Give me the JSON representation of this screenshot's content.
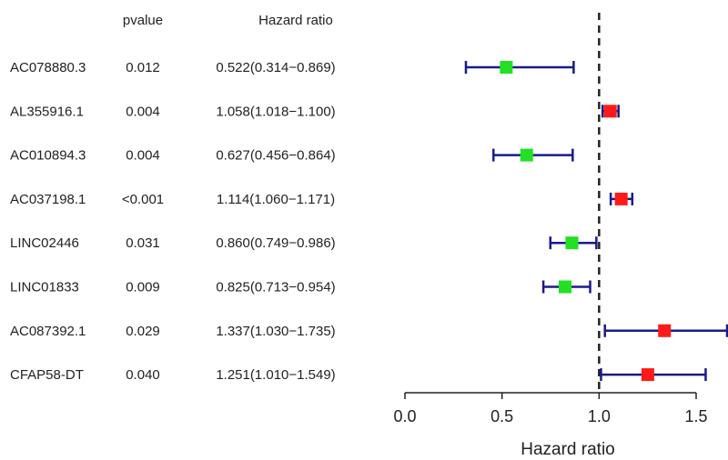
{
  "chart_data": {
    "type": "forest",
    "columns": {
      "pvalue": "pvalue",
      "hr": "Hazard ratio"
    },
    "rows": [
      {
        "gene": "AC078880.3",
        "pvalue": "0.012",
        "hr_text": "0.522(0.314−0.869)",
        "hr": 0.522,
        "lower": 0.314,
        "upper": 0.869
      },
      {
        "gene": "AL355916.1",
        "pvalue": "0.004",
        "hr_text": "1.058(1.018−1.100)",
        "hr": 1.058,
        "lower": 1.018,
        "upper": 1.1
      },
      {
        "gene": "AC010894.3",
        "pvalue": "0.004",
        "hr_text": "0.627(0.456−0.864)",
        "hr": 0.627,
        "lower": 0.456,
        "upper": 0.864
      },
      {
        "gene": "AC037198.1",
        "pvalue": "<0.001",
        "hr_text": "1.114(1.060−1.171)",
        "hr": 1.114,
        "lower": 1.06,
        "upper": 1.171
      },
      {
        "gene": "LINC02446",
        "pvalue": "0.031",
        "hr_text": "0.860(0.749−0.986)",
        "hr": 0.86,
        "lower": 0.749,
        "upper": 0.986
      },
      {
        "gene": "LINC01833",
        "pvalue": "0.009",
        "hr_text": "0.825(0.713−0.954)",
        "hr": 0.825,
        "lower": 0.713,
        "upper": 0.954
      },
      {
        "gene": "AC087392.1",
        "pvalue": "0.029",
        "hr_text": "1.337(1.030−1.735)",
        "hr": 1.337,
        "lower": 1.03,
        "upper": 1.735
      },
      {
        "gene": "CFAP58-DT",
        "pvalue": "0.040",
        "hr_text": "1.251(1.010−1.549)",
        "hr": 1.251,
        "lower": 1.01,
        "upper": 1.549
      }
    ],
    "xlabel": "Hazard ratio",
    "xticks": [
      0.0,
      0.5,
      1.0,
      1.5
    ],
    "xtick_labels": [
      "0.0",
      "0.5",
      "1.0",
      "1.5"
    ],
    "xlim": [
      0.0,
      1.75
    ],
    "reference_line": 1.0,
    "colors": {
      "protective": "#22e022",
      "risk": "#ff1a1a",
      "ci": "#1a1a8c",
      "reference": "#222222"
    }
  }
}
